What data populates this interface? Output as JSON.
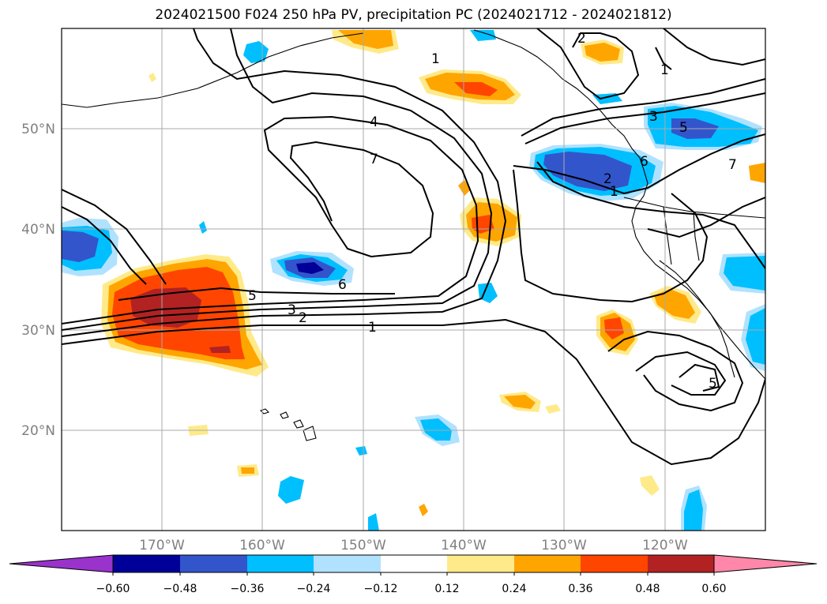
{
  "title": "2024021500 F024 250 hPa PV, precipitation PC (2024021712 - 2024021812)",
  "map": {
    "lat_labels": [
      "50°N",
      "40°N",
      "30°N",
      "20°N"
    ],
    "lon_labels": [
      "170°W",
      "160°W",
      "150°W",
      "140°W",
      "130°W",
      "120°W"
    ],
    "lat_range": [
      10,
      60
    ],
    "lon_range": [
      -180,
      -110
    ],
    "gridlines": true
  },
  "pv_contours": {
    "levels_labeled": [
      "1",
      "2",
      "3",
      "4",
      "5",
      "6",
      "7"
    ],
    "color": "#000000"
  },
  "colorbar": {
    "ticks": [
      "−0.60",
      "−0.48",
      "−0.36",
      "−0.24",
      "−0.12",
      "0.12",
      "0.24",
      "0.36",
      "0.48",
      "0.60"
    ],
    "colors": [
      "#9933cc",
      "#000099",
      "#3355cc",
      "#00bfff",
      "#b0e2ff",
      "#ffffff",
      "#ffea8a",
      "#ffa500",
      "#ff4500",
      "#b22222",
      "#ff88aa"
    ],
    "extend": "both"
  }
}
